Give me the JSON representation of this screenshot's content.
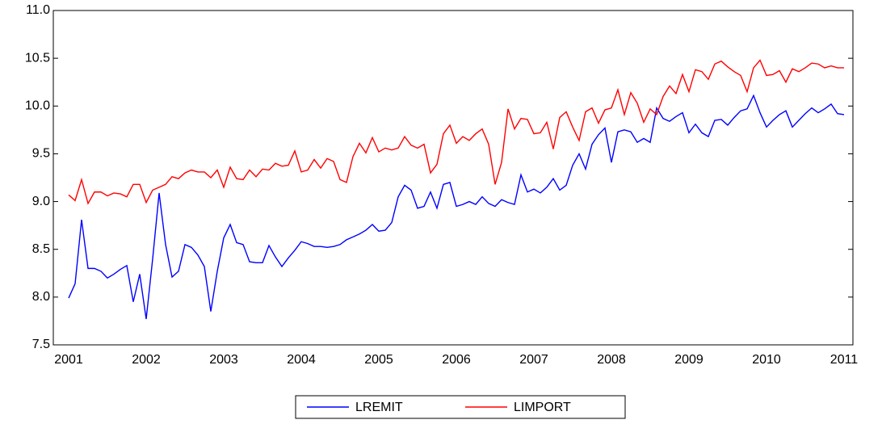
{
  "chart_data": {
    "type": "line",
    "categories": [
      "2001",
      null,
      null,
      null,
      null,
      null,
      null,
      null,
      null,
      null,
      null,
      null,
      "2002",
      null,
      null,
      null,
      null,
      null,
      null,
      null,
      null,
      null,
      null,
      null,
      "2003",
      null,
      null,
      null,
      null,
      null,
      null,
      null,
      null,
      null,
      null,
      null,
      "2004",
      null,
      null,
      null,
      null,
      null,
      null,
      null,
      null,
      null,
      null,
      null,
      "2005",
      null,
      null,
      null,
      null,
      null,
      null,
      null,
      null,
      null,
      null,
      null,
      "2006",
      null,
      null,
      null,
      null,
      null,
      null,
      null,
      null,
      null,
      null,
      null,
      "2007",
      null,
      null,
      null,
      null,
      null,
      null,
      null,
      null,
      null,
      null,
      null,
      "2008",
      null,
      null,
      null,
      null,
      null,
      null,
      null,
      null,
      null,
      null,
      null,
      "2009",
      null,
      null,
      null,
      null,
      null,
      null,
      null,
      null,
      null,
      null,
      null,
      "2010",
      null,
      null,
      null,
      null,
      null,
      null,
      null,
      null,
      null,
      null,
      null,
      "2011"
    ],
    "series": [
      {
        "name": "LREMIT",
        "color": "#0000ff",
        "values": [
          7.99,
          8.14,
          8.81,
          8.3,
          8.3,
          8.27,
          8.2,
          8.24,
          8.29,
          8.33,
          7.95,
          8.24,
          7.77,
          8.4,
          9.09,
          8.55,
          8.21,
          8.27,
          8.55,
          8.52,
          8.44,
          8.32,
          7.85,
          8.27,
          8.62,
          8.76,
          8.57,
          8.55,
          8.37,
          8.36,
          8.36,
          8.54,
          8.42,
          8.32,
          8.41,
          8.49,
          8.58,
          8.56,
          8.53,
          8.53,
          8.52,
          8.53,
          8.55,
          8.6,
          8.63,
          8.66,
          8.7,
          8.76,
          8.69,
          8.7,
          8.78,
          9.05,
          9.17,
          9.12,
          8.93,
          8.95,
          9.1,
          8.93,
          9.18,
          9.2,
          8.95,
          8.97,
          9.0,
          8.97,
          9.05,
          8.98,
          8.95,
          9.02,
          8.99,
          8.97,
          9.28,
          9.1,
          9.13,
          9.09,
          9.15,
          9.24,
          9.12,
          9.17,
          9.38,
          9.5,
          9.34,
          9.6,
          9.7,
          9.77,
          9.41,
          9.73,
          9.75,
          9.73,
          9.62,
          9.66,
          9.62,
          9.98,
          9.87,
          9.84,
          9.89,
          9.93,
          9.72,
          9.81,
          9.72,
          9.68,
          9.85,
          9.86,
          9.8,
          9.88,
          9.95,
          9.97,
          10.11,
          9.93,
          9.78,
          9.85,
          9.91,
          9.95,
          9.78,
          9.85,
          9.92,
          9.98,
          9.93,
          9.97,
          10.02,
          9.92,
          9.91
        ]
      },
      {
        "name": "LIMPORT",
        "color": "#ff0000",
        "values": [
          9.07,
          9.01,
          9.23,
          8.98,
          9.1,
          9.1,
          9.06,
          9.09,
          9.08,
          9.05,
          9.18,
          9.18,
          8.99,
          9.12,
          9.15,
          9.18,
          9.26,
          9.24,
          9.3,
          9.33,
          9.31,
          9.31,
          9.25,
          9.33,
          9.15,
          9.36,
          9.24,
          9.23,
          9.33,
          9.26,
          9.34,
          9.33,
          9.4,
          9.37,
          9.38,
          9.53,
          9.31,
          9.33,
          9.44,
          9.35,
          9.45,
          9.42,
          9.23,
          9.2,
          9.47,
          9.61,
          9.51,
          9.67,
          9.52,
          9.56,
          9.54,
          9.56,
          9.68,
          9.59,
          9.56,
          9.6,
          9.3,
          9.39,
          9.71,
          9.8,
          9.61,
          9.68,
          9.64,
          9.71,
          9.76,
          9.6,
          9.18,
          9.41,
          9.97,
          9.76,
          9.87,
          9.86,
          9.71,
          9.72,
          9.83,
          9.55,
          9.88,
          9.94,
          9.78,
          9.64,
          9.94,
          9.98,
          9.82,
          9.96,
          9.98,
          10.17,
          9.91,
          10.14,
          10.03,
          9.83,
          9.97,
          9.91,
          10.1,
          10.21,
          10.13,
          10.33,
          10.15,
          10.38,
          10.36,
          10.28,
          10.44,
          10.47,
          10.41,
          10.36,
          10.32,
          10.15,
          10.4,
          10.48,
          10.32,
          10.33,
          10.37,
          10.25,
          10.39,
          10.36,
          10.4,
          10.45,
          10.44,
          10.4,
          10.42,
          10.4,
          10.4
        ]
      }
    ],
    "ylim": [
      7.5,
      11.0
    ],
    "yticks": [
      {
        "value": 7.5,
        "label": "7.5"
      },
      {
        "value": 8.0,
        "label": "8.0"
      },
      {
        "value": 8.5,
        "label": "8.5"
      },
      {
        "value": 9.0,
        "label": "9.0"
      },
      {
        "value": 9.5,
        "label": "9.5"
      },
      {
        "value": 10.0,
        "label": "10.0"
      },
      {
        "value": 10.5,
        "label": "10.5"
      },
      {
        "value": 11.0,
        "label": "11.0"
      }
    ],
    "grid": false,
    "legend": "bottom"
  }
}
